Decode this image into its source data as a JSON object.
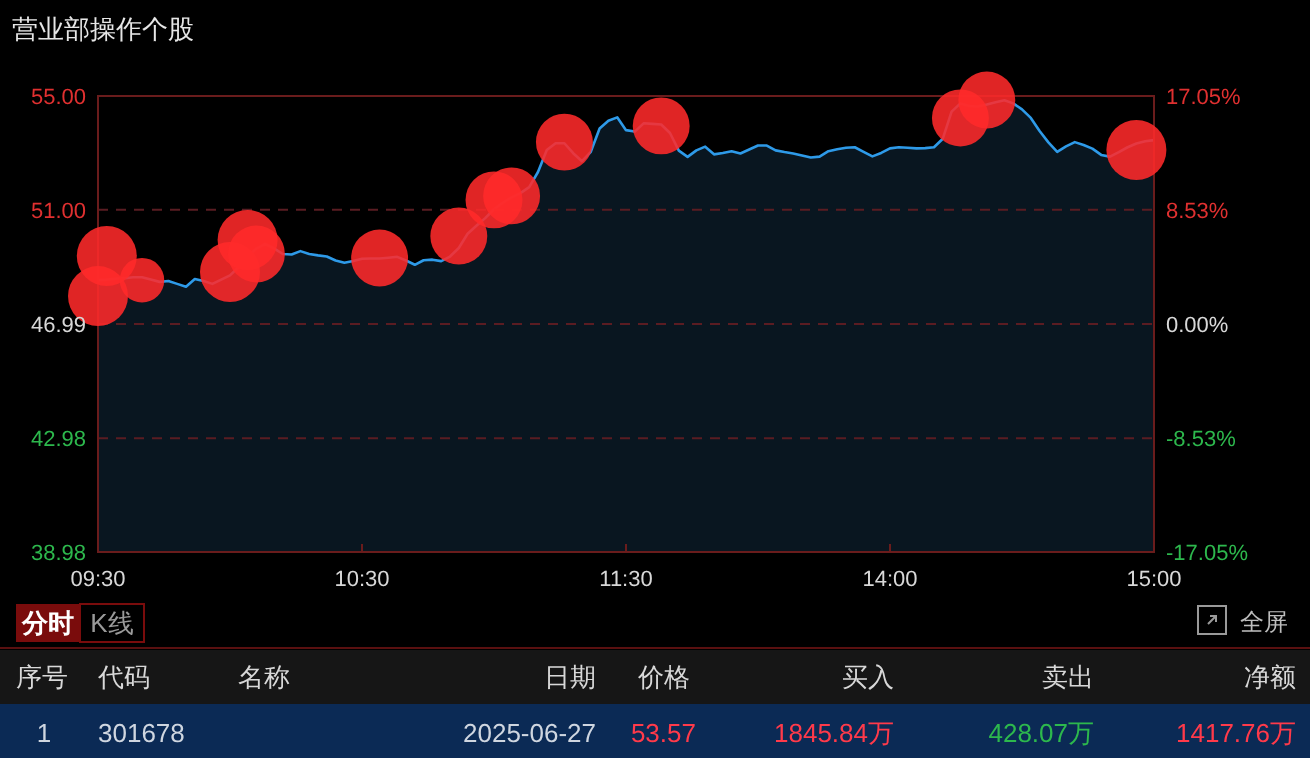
{
  "chart_data": {
    "type": "area",
    "title": "营业部操作个股",
    "categories": [
      "09:30",
      null,
      null,
      null,
      null,
      null,
      null,
      null,
      null,
      null,
      null,
      null,
      null,
      null,
      null,
      null,
      null,
      null,
      null,
      null,
      null,
      null,
      null,
      null,
      null,
      null,
      null,
      null,
      null,
      null,
      "10:30",
      null,
      null,
      null,
      null,
      null,
      null,
      null,
      null,
      null,
      null,
      null,
      null,
      null,
      null,
      null,
      null,
      null,
      null,
      null,
      null,
      null,
      null,
      null,
      null,
      null,
      null,
      null,
      null,
      null,
      "11:30",
      null,
      null,
      null,
      null,
      null,
      null,
      null,
      null,
      null,
      null,
      null,
      null,
      null,
      null,
      null,
      null,
      null,
      null,
      null,
      null,
      null,
      null,
      null,
      null,
      null,
      null,
      null,
      null,
      null,
      "14:00",
      null,
      null,
      null,
      null,
      null,
      null,
      null,
      null,
      null,
      null,
      null,
      null,
      null,
      null,
      null,
      null,
      null,
      null,
      null,
      null,
      null,
      null,
      null,
      null,
      null,
      null,
      null,
      null,
      null,
      "15:00"
    ],
    "ylim": [
      38.98,
      55
    ],
    "yticks": [
      {
        "value": 38.98,
        "label": "38.98"
      },
      {
        "value": 42.98,
        "label": "42.98"
      },
      {
        "value": 46.99,
        "label": "46.99"
      },
      {
        "value": 51,
        "label": "51.00"
      },
      {
        "value": 55,
        "label": "55.00"
      }
    ],
    "y2lim": [
      -17.05,
      17.05
    ],
    "y2ticks": [
      {
        "value": -17.05,
        "label": "-17.05%"
      },
      {
        "value": -8.53,
        "label": "-8.53%"
      },
      {
        "value": 0,
        "label": "0.00%"
      },
      {
        "value": 8.53,
        "label": "8.53%"
      },
      {
        "value": 17.05,
        "label": "17.05%"
      }
    ],
    "grid": "y",
    "series": [
      {
        "color": "#2e9ae8",
        "marker": "none",
        "values": [
          48.53,
          48.55,
          48.58,
          48.6,
          48.63,
          48.63,
          48.55,
          48.47,
          48.5,
          48.4,
          48.3,
          48.57,
          48.5,
          48.4,
          48.55,
          48.7,
          48.99,
          49.35,
          49.64,
          49.8,
          49.65,
          49.45,
          49.43,
          49.55,
          49.45,
          49.4,
          49.36,
          49.22,
          49.14,
          49.2,
          49.28,
          49.29,
          49.29,
          49.32,
          49.35,
          49.22,
          49.07,
          49.23,
          49.25,
          49.2,
          49.36,
          49.66,
          50.16,
          50.44,
          50.71,
          51.02,
          51.25,
          51.44,
          51.59,
          51.8,
          52.33,
          53.1,
          53.34,
          53.34,
          52.99,
          52.71,
          53.04,
          53.86,
          54.13,
          54.25,
          53.8,
          53.75,
          54.04,
          54.02,
          54.0,
          53.7,
          53.08,
          52.86,
          53.09,
          53.22,
          52.95,
          53.0,
          53.06,
          52.98,
          53.12,
          53.26,
          53.26,
          53.09,
          53.03,
          52.98,
          52.91,
          52.84,
          52.87,
          53.06,
          53.13,
          53.18,
          53.2,
          53.04,
          52.88,
          53.0,
          53.16,
          53.2,
          53.18,
          53.16,
          53.17,
          53.2,
          53.5,
          54.45,
          54.74,
          54.65,
          54.63,
          54.7,
          54.78,
          54.85,
          54.74,
          54.53,
          54.23,
          53.77,
          53.37,
          53.04,
          53.23,
          53.38,
          53.28,
          53.15,
          52.93,
          52.87,
          53.03,
          53.2,
          53.33,
          53.41,
          53.45
        ]
      },
      {
        "type": "bubble",
        "color": "#ff2a2a",
        "marker": "circle",
        "values": [
          47.97,
          49.38,
          null,
          null,
          null,
          48.53,
          null,
          null,
          null,
          null,
          null,
          null,
          null,
          null,
          null,
          48.82,
          null,
          49.94,
          49.45,
          null,
          null,
          null,
          null,
          null,
          null,
          null,
          null,
          null,
          null,
          null,
          null,
          null,
          49.31,
          null,
          null,
          null,
          null,
          null,
          null,
          null,
          null,
          50.08,
          null,
          null,
          null,
          51.35,
          null,
          51.49,
          null,
          null,
          null,
          null,
          null,
          53.38,
          null,
          null,
          null,
          null,
          null,
          null,
          null,
          null,
          null,
          null,
          53.95,
          null,
          null,
          null,
          null,
          null,
          null,
          null,
          null,
          null,
          null,
          null,
          null,
          null,
          null,
          null,
          null,
          null,
          null,
          null,
          null,
          null,
          null,
          null,
          null,
          null,
          null,
          null,
          null,
          null,
          null,
          null,
          null,
          null,
          54.23,
          null,
          null,
          54.86,
          null,
          null,
          null,
          null,
          null,
          null,
          null,
          null,
          null,
          null,
          null,
          null,
          null,
          null,
          null,
          null,
          53.1,
          null,
          null
        ],
        "sizes": [
          1,
          1,
          null,
          null,
          null,
          0.55,
          null,
          null,
          null,
          null,
          null,
          null,
          null,
          null,
          null,
          1,
          null,
          1,
          0.9,
          null,
          null,
          null,
          null,
          null,
          null,
          null,
          null,
          null,
          null,
          null,
          null,
          null,
          0.9,
          null,
          null,
          null,
          null,
          null,
          null,
          null,
          null,
          0.9,
          null,
          null,
          null,
          0.9,
          null,
          0.9,
          null,
          null,
          null,
          null,
          null,
          0.9,
          null,
          null,
          null,
          null,
          null,
          null,
          null,
          null,
          null,
          null,
          0.9,
          null,
          null,
          null,
          null,
          null,
          null,
          null,
          null,
          null,
          null,
          null,
          null,
          null,
          null,
          null,
          null,
          null,
          null,
          null,
          null,
          null,
          null,
          null,
          null,
          null,
          null,
          null,
          null,
          null,
          null,
          null,
          null,
          null,
          0.9,
          null,
          null,
          0.9,
          null,
          null,
          null,
          null,
          null,
          null,
          null,
          null,
          null,
          null,
          null,
          null,
          null,
          null,
          null,
          null,
          1,
          null,
          null
        ]
      }
    ],
    "annotations": [
      "分时",
      "K线",
      "全屏",
      "序号",
      "代码",
      "名称",
      "日期",
      "价格",
      "买入",
      "卖出",
      "净额",
      "1",
      "301678",
      "2025-06-27",
      "53.57",
      "1845.84万",
      "428.07万",
      "1417.76万"
    ]
  }
}
